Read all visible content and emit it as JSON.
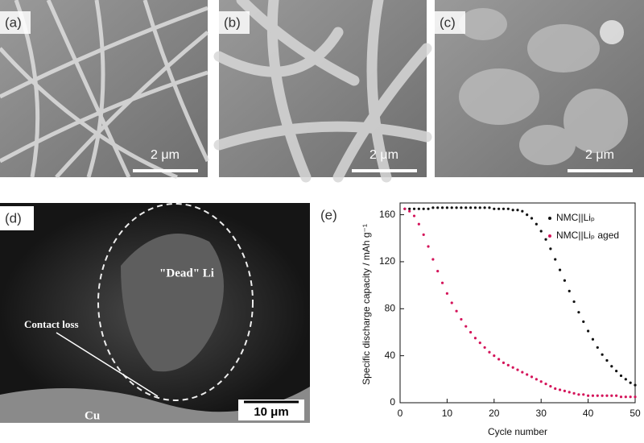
{
  "panels": [
    {
      "label": "(a)",
      "scale_bar": "2 μm"
    },
    {
      "label": "(b)",
      "scale_bar": "2 μm"
    },
    {
      "label": "(c)",
      "scale_bar": "2 μm"
    },
    {
      "label": "(d)",
      "scale_bar": "10 μm",
      "annotations": [
        "\"Dead\" Li",
        "Contact loss",
        "Cu"
      ]
    }
  ],
  "chart_data": {
    "type": "scatter",
    "label": "(e)",
    "x_label": "Cycle number",
    "y_label": "Specific discharge capacity / mAh g⁻¹",
    "x": [
      1,
      2,
      3,
      4,
      5,
      6,
      7,
      8,
      9,
      10,
      11,
      12,
      13,
      14,
      15,
      16,
      17,
      18,
      19,
      20,
      21,
      22,
      23,
      24,
      25,
      26,
      27,
      28,
      29,
      30,
      31,
      32,
      33,
      34,
      35,
      36,
      37,
      38,
      39,
      40,
      41,
      42,
      43,
      44,
      45,
      46,
      47,
      48,
      49,
      50
    ],
    "series": [
      {
        "name": "NMC||Liₚ",
        "color": "#111111",
        "values": [
          165,
          165,
          165,
          165,
          165,
          165,
          166,
          166,
          166,
          166,
          166,
          166,
          166,
          166,
          166,
          166,
          166,
          166,
          166,
          165,
          165,
          165,
          165,
          164,
          164,
          163,
          160,
          157,
          152,
          146,
          139,
          131,
          122,
          113,
          104,
          95,
          86,
          77,
          69,
          61,
          54,
          47,
          41,
          36,
          31,
          27,
          23,
          20,
          17,
          15
        ]
      },
      {
        "name": "NMC||Liₚ aged",
        "color": "#d4145a",
        "values": [
          165,
          163,
          159,
          152,
          143,
          133,
          122,
          112,
          102,
          93,
          85,
          78,
          71,
          65,
          60,
          55,
          51,
          47,
          43,
          40,
          37,
          34,
          32,
          30,
          28,
          26,
          24,
          22,
          20,
          18,
          16,
          14,
          12,
          11,
          10,
          9,
          8,
          7,
          7,
          6,
          6,
          6,
          6,
          6,
          6,
          6,
          5,
          5,
          5,
          5
        ]
      }
    ],
    "xlim": [
      0,
      50
    ],
    "ylim": [
      0,
      170
    ],
    "xticks": [
      0,
      10,
      20,
      30,
      40,
      50
    ],
    "yticks": [
      0,
      40,
      80,
      120,
      160
    ],
    "legend": "top-right"
  }
}
